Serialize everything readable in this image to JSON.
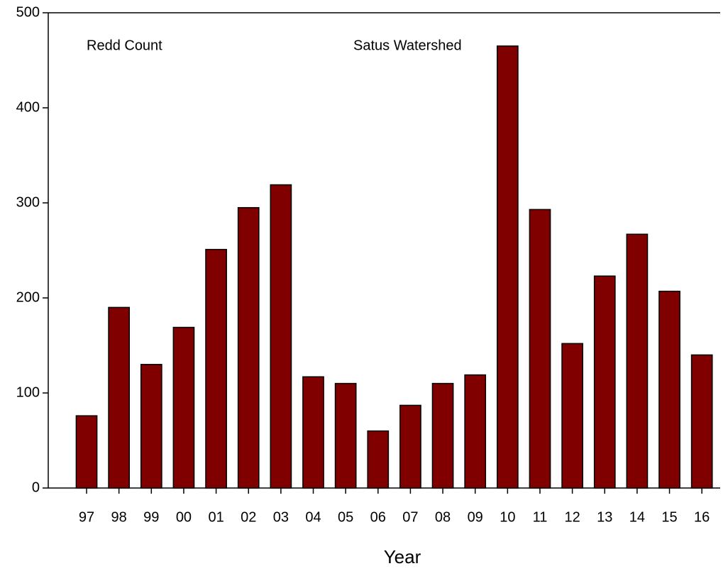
{
  "chart_data": {
    "type": "bar",
    "annotations": [
      "Redd Count",
      "Satus Watershed"
    ],
    "x_label": "Year",
    "categories": [
      "97",
      "98",
      "99",
      "00",
      "01",
      "02",
      "03",
      "04",
      "05",
      "06",
      "07",
      "08",
      "09",
      "10",
      "11",
      "12",
      "13",
      "14",
      "15",
      "16"
    ],
    "values": [
      76,
      190,
      130,
      169,
      251,
      295,
      319,
      117,
      110,
      60,
      87,
      110,
      119,
      465,
      293,
      152,
      223,
      267,
      207,
      140
    ],
    "color": "#800000",
    "ylim": [
      0,
      500
    ],
    "yticks": [
      0,
      100,
      200,
      300,
      400,
      500
    ],
    "grid": false
  }
}
